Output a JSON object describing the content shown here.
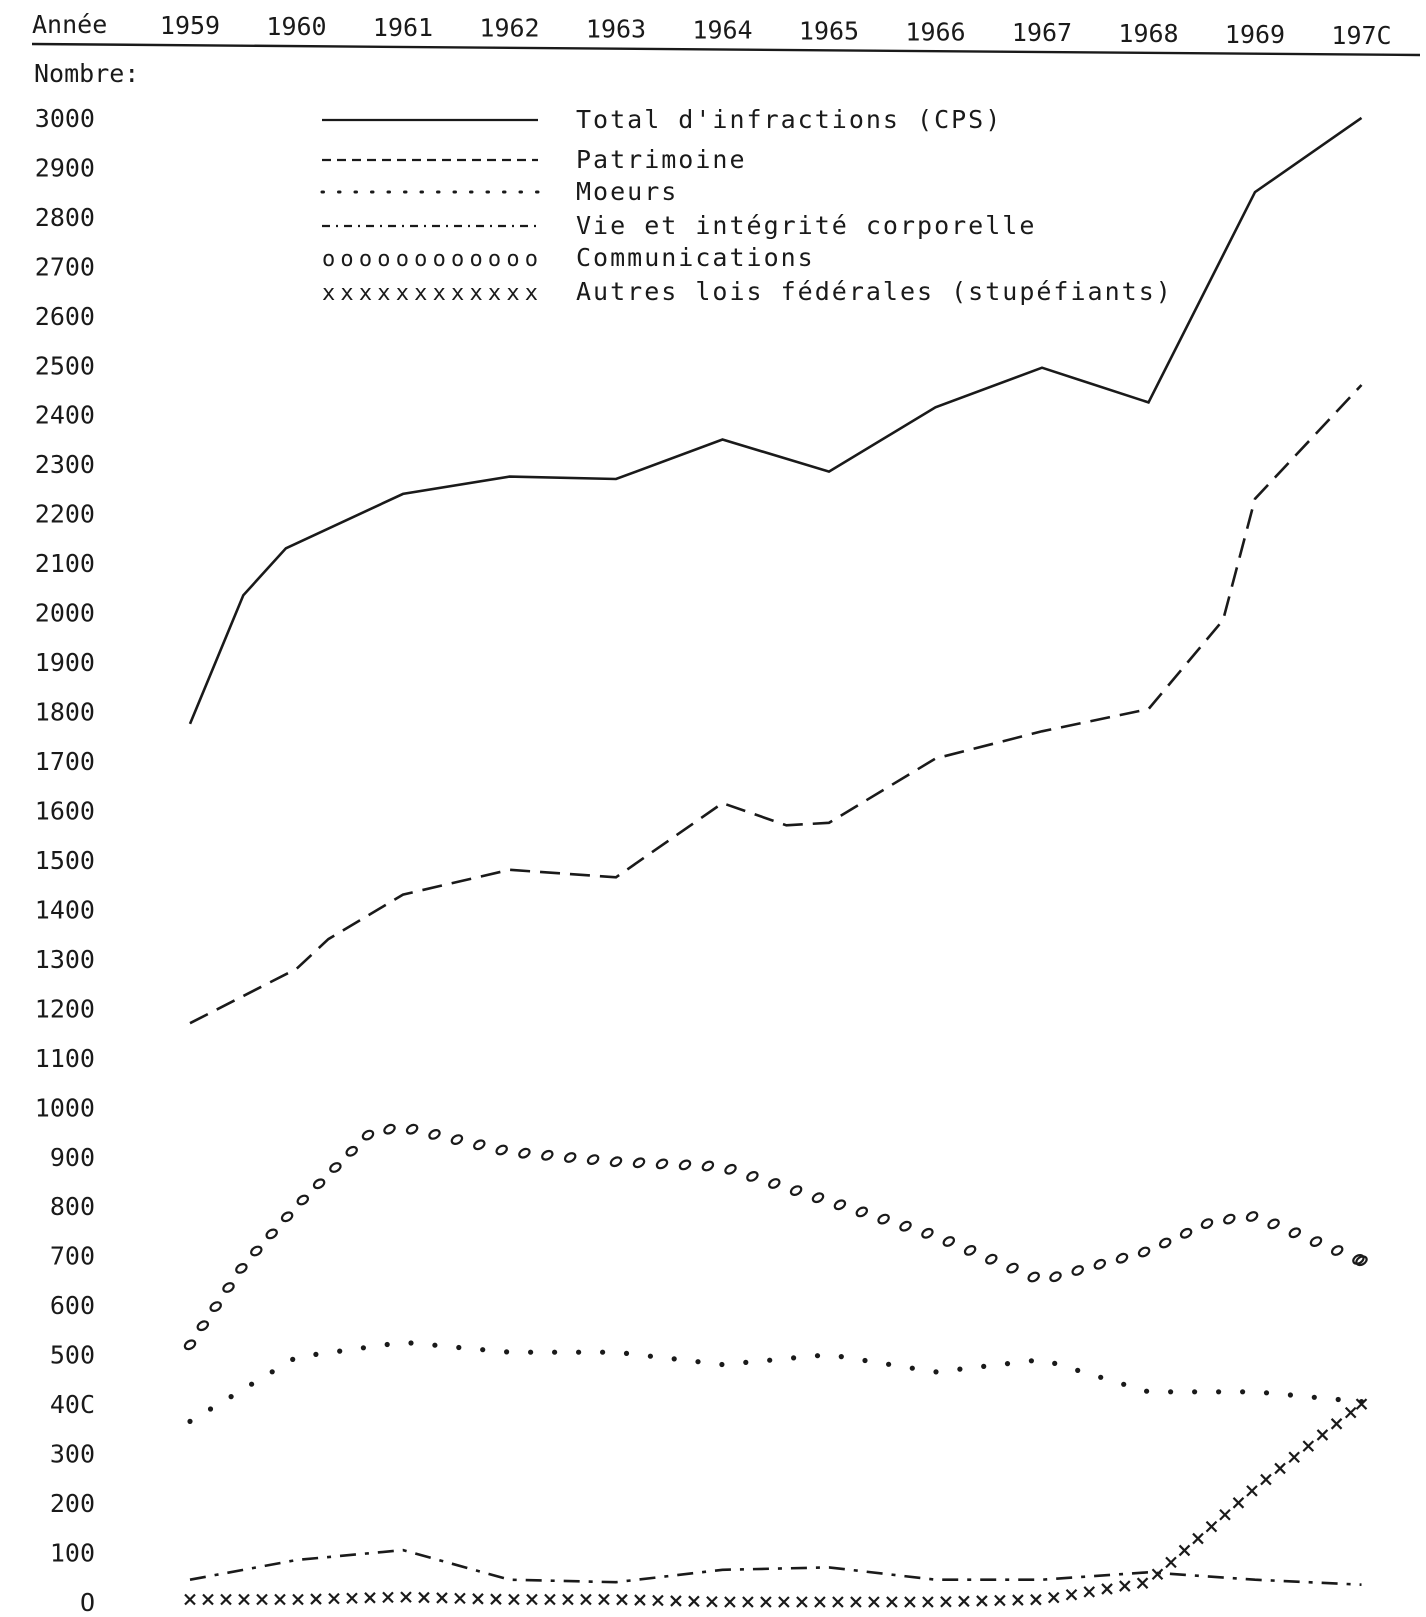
{
  "chart_data": {
    "type": "line",
    "x_label": "Année",
    "y_label": "Nombre:",
    "x": [
      "1959",
      "1960",
      "1961",
      "1962",
      "1963",
      "1964",
      "1965",
      "1966",
      "1967",
      "1968",
      "1969",
      "197C"
    ],
    "y_ticks": [
      "O",
      "100",
      "200",
      "300",
      "40C",
      "500",
      "600",
      "700",
      "800",
      "900",
      "1000",
      "1100",
      "1200",
      "1300",
      "1400",
      "1500",
      "1600",
      "1700",
      "1800",
      "1900",
      "2000",
      "2100",
      "2200",
      "2300",
      "2400",
      "2500",
      "2600",
      "2700",
      "2800",
      "2900",
      "3000"
    ],
    "ylim": [
      0,
      3000
    ],
    "legend_position": "top",
    "series": [
      {
        "name": "Total d'infractions (CPS)",
        "style": "solid",
        "points": [
          [
            1959,
            1775
          ],
          [
            1959.5,
            2035
          ],
          [
            1959.9,
            2130
          ],
          [
            1961,
            2240
          ],
          [
            1962,
            2275
          ],
          [
            1963,
            2270
          ],
          [
            1964,
            2350
          ],
          [
            1965,
            2285
          ],
          [
            1966,
            2415
          ],
          [
            1967,
            2495
          ],
          [
            1968,
            2425
          ],
          [
            1969,
            2850
          ],
          [
            1970,
            3000
          ]
        ]
      },
      {
        "name": "Patrimoine",
        "style": "dashed",
        "points": [
          [
            1959,
            1170
          ],
          [
            1960,
            1280
          ],
          [
            1960.3,
            1340
          ],
          [
            1961,
            1430
          ],
          [
            1962,
            1480
          ],
          [
            1963,
            1465
          ],
          [
            1964,
            1615
          ],
          [
            1964.6,
            1570
          ],
          [
            1965,
            1575
          ],
          [
            1966,
            1705
          ],
          [
            1967,
            1760
          ],
          [
            1968,
            1805
          ],
          [
            1968.7,
            1985
          ],
          [
            1969,
            2230
          ],
          [
            1970,
            2460
          ]
        ]
      },
      {
        "name": "Moeurs",
        "style": "dotted",
        "points": [
          [
            1959,
            365
          ],
          [
            1960,
            495
          ],
          [
            1961,
            525
          ],
          [
            1962,
            505
          ],
          [
            1963,
            505
          ],
          [
            1964,
            480
          ],
          [
            1965,
            500
          ],
          [
            1966,
            465
          ],
          [
            1967,
            490
          ],
          [
            1968,
            425
          ],
          [
            1969,
            425
          ],
          [
            1970,
            405
          ]
        ]
      },
      {
        "name": "Vie et intégrité corporelle",
        "style": "dash-dot",
        "points": [
          [
            1959,
            45
          ],
          [
            1960,
            85
          ],
          [
            1961,
            105
          ],
          [
            1962,
            45
          ],
          [
            1963,
            40
          ],
          [
            1964,
            65
          ],
          [
            1965,
            70
          ],
          [
            1966,
            45
          ],
          [
            1967,
            45
          ],
          [
            1968,
            60
          ],
          [
            1969,
            45
          ],
          [
            1970,
            35
          ]
        ]
      },
      {
        "name": "Communications",
        "style": "circles",
        "points": [
          [
            1959,
            520
          ],
          [
            1959.5,
            680
          ],
          [
            1960,
            800
          ],
          [
            1960.7,
            950
          ],
          [
            1961,
            960
          ],
          [
            1962,
            910
          ],
          [
            1963,
            890
          ],
          [
            1964,
            880
          ],
          [
            1965,
            810
          ],
          [
            1966,
            740
          ],
          [
            1967,
            650
          ],
          [
            1968,
            710
          ],
          [
            1968.6,
            770
          ],
          [
            1969,
            780
          ],
          [
            1970,
            690
          ]
        ]
      },
      {
        "name": "Autres lois fédérales (stupéfiants)",
        "style": "crosses",
        "points": [
          [
            1959,
            5
          ],
          [
            1960,
            5
          ],
          [
            1961,
            10
          ],
          [
            1962,
            5
          ],
          [
            1963,
            5
          ],
          [
            1964,
            0
          ],
          [
            1965,
            0
          ],
          [
            1966,
            0
          ],
          [
            1967,
            5
          ],
          [
            1968,
            40
          ],
          [
            1969,
            230
          ],
          [
            1970,
            400
          ]
        ]
      }
    ]
  }
}
